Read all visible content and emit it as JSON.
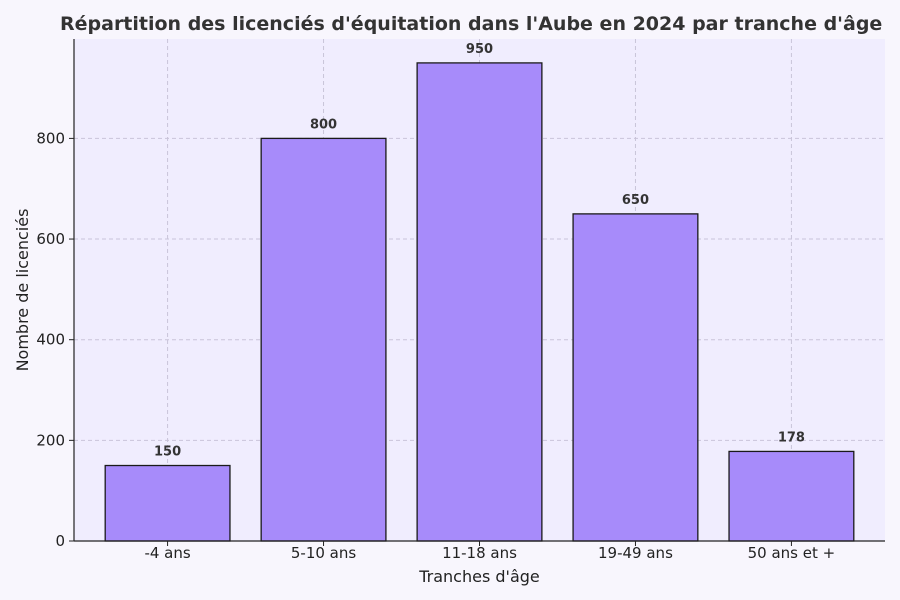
{
  "chart_data": {
    "type": "bar",
    "title": "Répartition des licenciés d'équitation dans l'Aube en 2024 par tranche d'âge",
    "xlabel": "Tranches d'âge",
    "ylabel": "Nombre de licenciés",
    "categories": [
      "-4 ans",
      "5-10 ans",
      "11-18 ans",
      "19-49 ans",
      "50 ans et +"
    ],
    "values": [
      150,
      800,
      950,
      650,
      178
    ],
    "data_labels": [
      "150",
      "800",
      "950",
      "650",
      "178"
    ],
    "ylim": [
      0,
      997.5
    ],
    "yticks": [
      0,
      200,
      400,
      600,
      800
    ],
    "ytick_labels": [
      "0",
      "200",
      "400",
      "600",
      "800"
    ],
    "grid": true,
    "colors": {
      "bar_fill": "#a78bfa",
      "bar_edge": "#1a1a1a",
      "plot_bg": "#f0edfe",
      "page_bg": "#f8f6fd",
      "grid": "#c9c4d9"
    }
  }
}
